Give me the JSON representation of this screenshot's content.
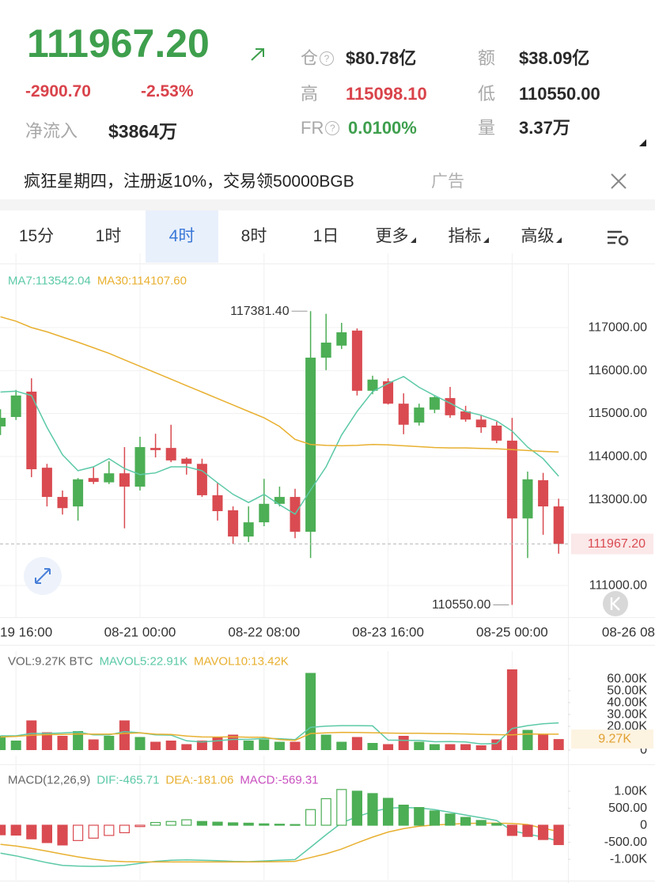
{
  "header": {
    "price": "111967.20",
    "change": "-2900.70",
    "change_pct": "-2.53%",
    "net_inflow_label": "净流入",
    "net_inflow": "$3864万",
    "stats": [
      {
        "label": "仓",
        "value": "$80.78亿"
      },
      {
        "label": "额",
        "value": "$38.09亿"
      },
      {
        "label": "高",
        "value": "115098.10"
      },
      {
        "label": "低",
        "value": "110550.00"
      },
      {
        "label": "FR",
        "value": "0.0100%"
      },
      {
        "label": "量",
        "value": "3.37万"
      }
    ]
  },
  "ad": {
    "text": "疯狂星期四，注册返10%，交易领50000BGB",
    "tag": "广告"
  },
  "tabs": [
    "15分",
    "1时",
    "4时",
    "8时",
    "1日",
    "更多",
    "指标",
    "高级"
  ],
  "chart_data": [
    {
      "type": "candlestick",
      "grid": true,
      "up_color": "#4cae55",
      "down_color": "#d94b51",
      "categories": [
        null,
        "19 16:00",
        null,
        null,
        null,
        null,
        null,
        null,
        null,
        "08-21 00:00",
        null,
        null,
        null,
        null,
        null,
        null,
        null,
        "08-22 08:00",
        null,
        null,
        null,
        null,
        null,
        null,
        null,
        "08-23 16:00",
        null,
        null,
        null,
        null,
        null,
        null,
        null,
        "08-25 00:00",
        null,
        null,
        null,
        null,
        null,
        null,
        null,
        "08-26 08"
      ],
      "open": [
        114700,
        114920,
        115510,
        113740,
        113060,
        112840,
        113500,
        113400,
        113610,
        113300,
        114200,
        114200,
        113950,
        113830,
        113100,
        112750,
        112140,
        112470,
        112900,
        113060,
        112250,
        116300,
        116580,
        116930,
        115530,
        115750,
        115230,
        114790,
        115090,
        115360,
        115050,
        114860,
        114720,
        114370,
        112560,
        113450,
        112840,
        null,
        null,
        null,
        null,
        null
      ],
      "high": [
        115100,
        115550,
        115820,
        113830,
        113210,
        113500,
        113760,
        113890,
        114220,
        114460,
        114530,
        114740,
        113980,
        113950,
        113390,
        112840,
        112840,
        113480,
        113300,
        113250,
        117381.4,
        117320,
        117110,
        116980,
        115880,
        115820,
        115470,
        115230,
        115420,
        115620,
        115180,
        114960,
        114810,
        114900,
        113650,
        113620,
        113020,
        null,
        null,
        null,
        null,
        null
      ],
      "low": [
        114500,
        114850,
        113520,
        112840,
        112650,
        112510,
        113360,
        113360,
        112330,
        113210,
        113980,
        113870,
        113580,
        113060,
        112510,
        111960,
        112010,
        112380,
        112840,
        112100,
        111640,
        116010,
        116500,
        115420,
        115450,
        115210,
        114520,
        114720,
        115010,
        114900,
        114810,
        114550,
        114310,
        110550,
        111640,
        112180,
        111740,
        null,
        null,
        null,
        null,
        null
      ],
      "close": [
        114900,
        115420,
        113705,
        113060,
        112800,
        113470,
        113410,
        113610,
        113300,
        114220,
        114150,
        113910,
        113830,
        113100,
        112730,
        112140,
        112470,
        112900,
        113060,
        112250,
        116300,
        116650,
        116890,
        115530,
        115790,
        115230,
        114740,
        115140,
        115380,
        114960,
        114860,
        114680,
        114370,
        112560,
        113470,
        112840,
        111967.2,
        null,
        null,
        null,
        null,
        null
      ],
      "series": [
        {
          "name": "MA7:113542.04",
          "color": "#5cc9a7",
          "style": "line",
          "values": [
            115500,
            115520,
            115420,
            114680,
            114040,
            113670,
            113760,
            113950,
            113720,
            113580,
            113620,
            113760,
            113760,
            113670,
            113390,
            113120,
            112930,
            113120,
            112880,
            112660,
            113220,
            113760,
            114500,
            115050,
            115510,
            115700,
            115860,
            115610,
            115420,
            115240,
            115050,
            114960,
            114830,
            114590,
            114220,
            113950,
            113542.04,
            null,
            null,
            null,
            null,
            null
          ]
        },
        {
          "name": "MA30:114107.60",
          "color": "#e8b030",
          "style": "line",
          "values": [
            117250,
            117150,
            117000,
            116900,
            116780,
            116660,
            116530,
            116400,
            116250,
            116100,
            115950,
            115800,
            115650,
            115500,
            115350,
            115200,
            115050,
            114900,
            114700,
            114400,
            114280,
            114260,
            114250,
            114260,
            114280,
            114270,
            114250,
            114230,
            114210,
            114200,
            114200,
            114190,
            114180,
            114160,
            114140,
            114120,
            114107.6,
            null,
            null,
            null,
            null,
            null
          ]
        }
      ],
      "ylim": [
        110264,
        118362
      ],
      "yticks": [
        {
          "value": 111000,
          "label": "111000.00"
        },
        {
          "value": 113000,
          "label": "113000.00"
        },
        {
          "value": 114000,
          "label": "114000.00"
        },
        {
          "value": 115000,
          "label": "115000.00"
        },
        {
          "value": 116000,
          "label": "116000.00"
        },
        {
          "value": 117000,
          "label": "117000.00"
        }
      ],
      "last_price": {
        "value": 111967.2,
        "label": "111967.20"
      },
      "annotations": [
        {
          "value": 117381.4,
          "label": "117381.40",
          "at": "high"
        },
        {
          "value": 110550,
          "label": "110550.00",
          "at": "low"
        }
      ]
    },
    {
      "type": "bar",
      "grid": false,
      "up_color": "#4cae55",
      "down_color": "#d94b51",
      "series": [
        {
          "name": "VOL:9.27K BTC",
          "color": "#666666",
          "style": "bar",
          "values": [
            12,
            8,
            25,
            15,
            12,
            16,
            9,
            12,
            25,
            11,
            7,
            8,
            5,
            8,
            11,
            13,
            8,
            9,
            7,
            7,
            65,
            13,
            7,
            11,
            6,
            5,
            12,
            7,
            5,
            5,
            5,
            4,
            9,
            68,
            17,
            13,
            9.27,
            null,
            null,
            null,
            null,
            null
          ]
        },
        {
          "name": "MAVOL5:22.91K",
          "color": "#5cc9a7",
          "style": "line",
          "values": [
            12,
            12,
            14,
            14,
            14.4,
            15.2,
            12.8,
            12.8,
            15.6,
            14.6,
            12.8,
            12.6,
            7.8,
            6.8,
            7.8,
            9,
            9,
            9.8,
            9.6,
            8.8,
            19.2,
            20.2,
            20.6,
            20.6,
            20.4,
            8.4,
            8.2,
            8.2,
            7,
            7.2,
            6.8,
            5.2,
            5.6,
            18.2,
            20.6,
            22.2,
            22.91,
            null,
            null,
            null,
            null,
            null
          ]
        },
        {
          "name": "MAVOL10:13.42K",
          "color": "#e8b030",
          "style": "line",
          "values": [
            11,
            11.5,
            12.5,
            13,
            13.2,
            13.6,
            13.4,
            13.4,
            14,
            14.5,
            13.4,
            13.2,
            11.8,
            11.1,
            11,
            11.2,
            10.8,
            10.8,
            8.8,
            8.2,
            13.9,
            14.5,
            14.9,
            14.8,
            14.6,
            14.3,
            14.2,
            14.2,
            13.9,
            13.8,
            13.6,
            13.2,
            13,
            12.8,
            13.6,
            13.4,
            13.42,
            null,
            null,
            null,
            null,
            null
          ]
        }
      ],
      "ylim": [
        0,
        70
      ],
      "yticks": [
        0,
        {
          "value": 20,
          "label": "20.00K"
        },
        {
          "value": 30,
          "label": "30.00K"
        },
        {
          "value": 40,
          "label": "40.00K"
        },
        {
          "value": 50,
          "label": "50.00K"
        },
        {
          "value": 60,
          "label": "60.00K"
        }
      ],
      "current": {
        "value": 9.27,
        "label": "9.27K"
      }
    },
    {
      "type": "macd",
      "grid": false,
      "title": "MACD(12,26,9)",
      "up_color": "#4cae55",
      "down_color": "#d94b51",
      "series": [
        {
          "name": "DIF:-465.71",
          "color": "#5cc9a7",
          "style": "line",
          "values": [
            -820,
            -900,
            -1000,
            -1100,
            -1180,
            -1200,
            -1210,
            -1200,
            -1180,
            -1120,
            -1060,
            -1030,
            -1020,
            -1030,
            -1040,
            -1060,
            -1070,
            -1050,
            -1030,
            -1010,
            -650,
            -280,
            70,
            250,
            400,
            500,
            520,
            510,
            460,
            380,
            300,
            220,
            140,
            -160,
            -260,
            -350,
            -465.71,
            null,
            null,
            null,
            null,
            null
          ]
        },
        {
          "name": "DEA:-181.06",
          "color": "#e8b030",
          "style": "line",
          "values": [
            -560,
            -610,
            -680,
            -760,
            -850,
            -930,
            -1000,
            -1050,
            -1070,
            -1080,
            -1080,
            -1080,
            -1080,
            -1080,
            -1080,
            -1080,
            -1080,
            -1075,
            -1070,
            -1060,
            -950,
            -840,
            -700,
            -520,
            -350,
            -200,
            -100,
            -30,
            10,
            30,
            50,
            60,
            60,
            50,
            20,
            -90,
            -181.06,
            null,
            null,
            null,
            null,
            null
          ]
        },
        {
          "name": "MACD:-569.31",
          "color": "#c94fc0",
          "style": "bar",
          "values": [
            -280,
            -290,
            -400,
            -510,
            -580,
            -450,
            -380,
            -300,
            -220,
            -40,
            80,
            110,
            160,
            110,
            90,
            70,
            60,
            40,
            30,
            20,
            460,
            780,
            1050,
            1000,
            930,
            790,
            590,
            520,
            420,
            330,
            230,
            140,
            50,
            -300,
            -330,
            -420,
            -569.31,
            null,
            null,
            null,
            null,
            null
          ]
        }
      ],
      "ylim": [
        -1605,
        1581
      ],
      "yticks": [
        {
          "value": -1000,
          "label": "-1.00K"
        },
        {
          "value": -500,
          "label": "-500.00"
        },
        0,
        {
          "value": 500,
          "label": "500.00"
        },
        {
          "value": 1000,
          "label": "1.00K"
        }
      ]
    }
  ]
}
